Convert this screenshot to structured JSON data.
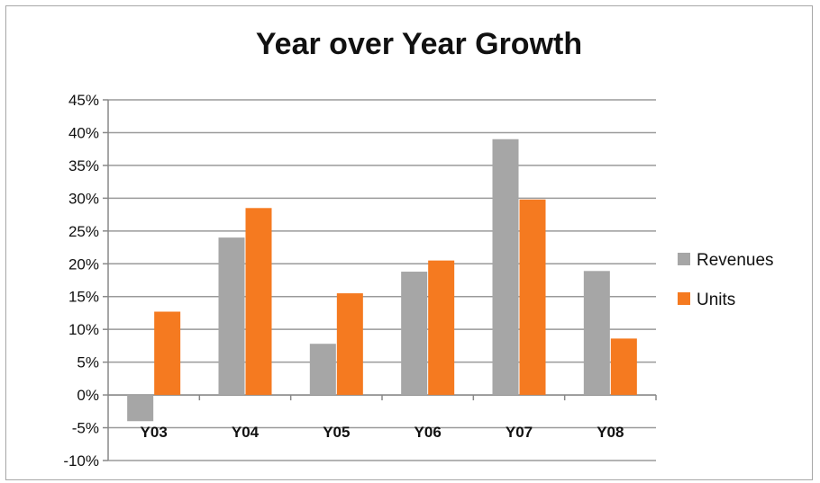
{
  "chart_data": {
    "type": "bar",
    "title": "Year over Year Growth",
    "xlabel": "",
    "ylabel": "",
    "categories": [
      "Y03",
      "Y04",
      "Y05",
      "Y06",
      "Y07",
      "Y08"
    ],
    "series": [
      {
        "name": "Revenues",
        "values": [
          -4,
          24,
          7.8,
          18.8,
          39,
          18.9
        ],
        "color": "#a6a6a6"
      },
      {
        "name": "Units",
        "values": [
          12.7,
          28.5,
          15.5,
          20.5,
          29.8,
          8.6
        ],
        "color": "#f57a20"
      }
    ],
    "ylim": [
      -10,
      45
    ],
    "yticks": [
      -10,
      -5,
      0,
      5,
      10,
      15,
      20,
      25,
      30,
      35,
      40,
      45
    ],
    "ytick_labels": [
      "-10%",
      "-5%",
      "0%",
      "5%",
      "10%",
      "15%",
      "20%",
      "25%",
      "30%",
      "35%",
      "40%",
      "45%"
    ],
    "grid": true,
    "legend_position": "right"
  }
}
